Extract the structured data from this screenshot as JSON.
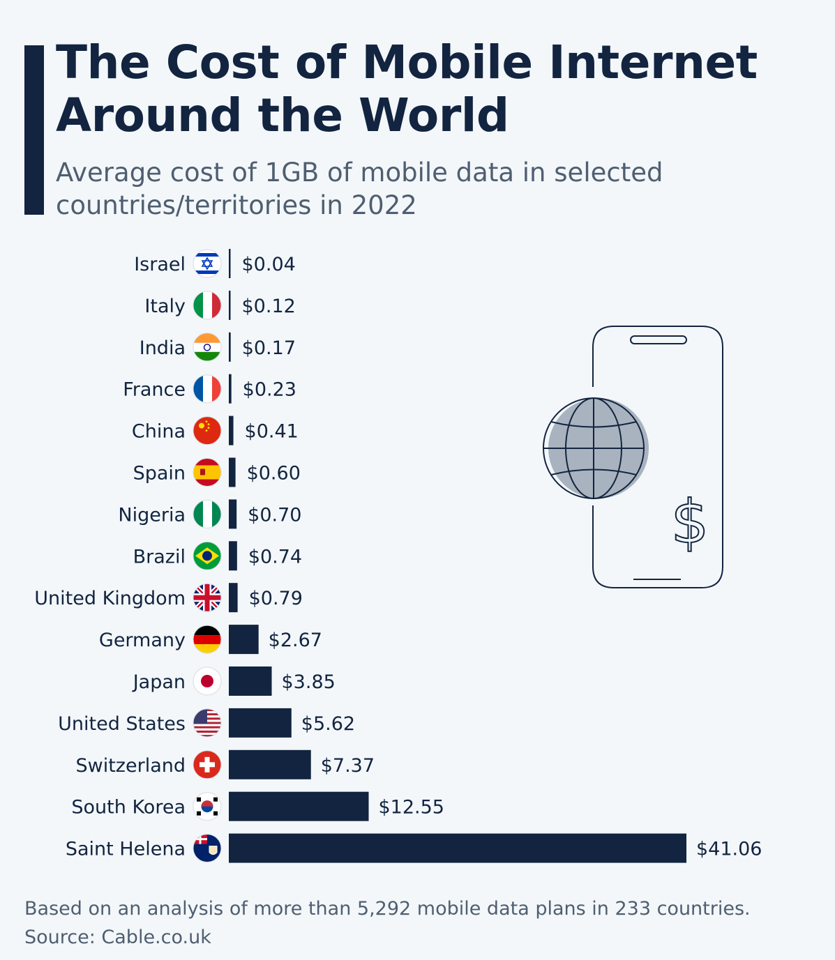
{
  "header": {
    "title_line1": "The Cost of Mobile Internet",
    "title_line2": "Around the World",
    "subtitle_line1": "Average cost of 1GB of mobile data in selected",
    "subtitle_line2": "countries/territories in 2022"
  },
  "footer": {
    "note": "Based on an analysis of more than 5,292 mobile data plans in 233 countries.",
    "source": "Source: Cable.co.uk"
  },
  "illustration": {
    "currency_symbol": "$"
  },
  "colors": {
    "bar": "#12243f",
    "text": "#12243f",
    "muted": "#4f5e70",
    "background": "#f3f7fa"
  },
  "chart_data": {
    "type": "bar",
    "orientation": "horizontal",
    "title": "The Cost of Mobile Internet Around the World",
    "subtitle": "Average cost of 1GB of mobile data in selected countries/territories in 2022",
    "categories": [
      "Israel",
      "Italy",
      "India",
      "France",
      "China",
      "Spain",
      "Nigeria",
      "Brazil",
      "United Kingdom",
      "Germany",
      "Japan",
      "United States",
      "Switzerland",
      "South Korea",
      "Saint Helena"
    ],
    "values": [
      0.04,
      0.12,
      0.17,
      0.23,
      0.41,
      0.6,
      0.7,
      0.74,
      0.79,
      2.67,
      3.85,
      5.62,
      7.37,
      12.55,
      41.06
    ],
    "value_labels": [
      "$0.04",
      "$0.12",
      "$0.17",
      "$0.23",
      "$0.41",
      "$0.60",
      "$0.70",
      "$0.74",
      "$0.79",
      "$2.67",
      "$3.85",
      "$5.62",
      "$7.37",
      "$12.55",
      "$41.06"
    ],
    "flag_icons": [
      "israel-flag-icon",
      "italy-flag-icon",
      "india-flag-icon",
      "france-flag-icon",
      "china-flag-icon",
      "spain-flag-icon",
      "nigeria-flag-icon",
      "brazil-flag-icon",
      "united-kingdom-flag-icon",
      "germany-flag-icon",
      "japan-flag-icon",
      "united-states-flag-icon",
      "switzerland-flag-icon",
      "south-korea-flag-icon",
      "saint-helena-flag-icon"
    ],
    "unit": "USD",
    "xlim": [
      0,
      41.06
    ],
    "grid": false,
    "legend": "none"
  }
}
